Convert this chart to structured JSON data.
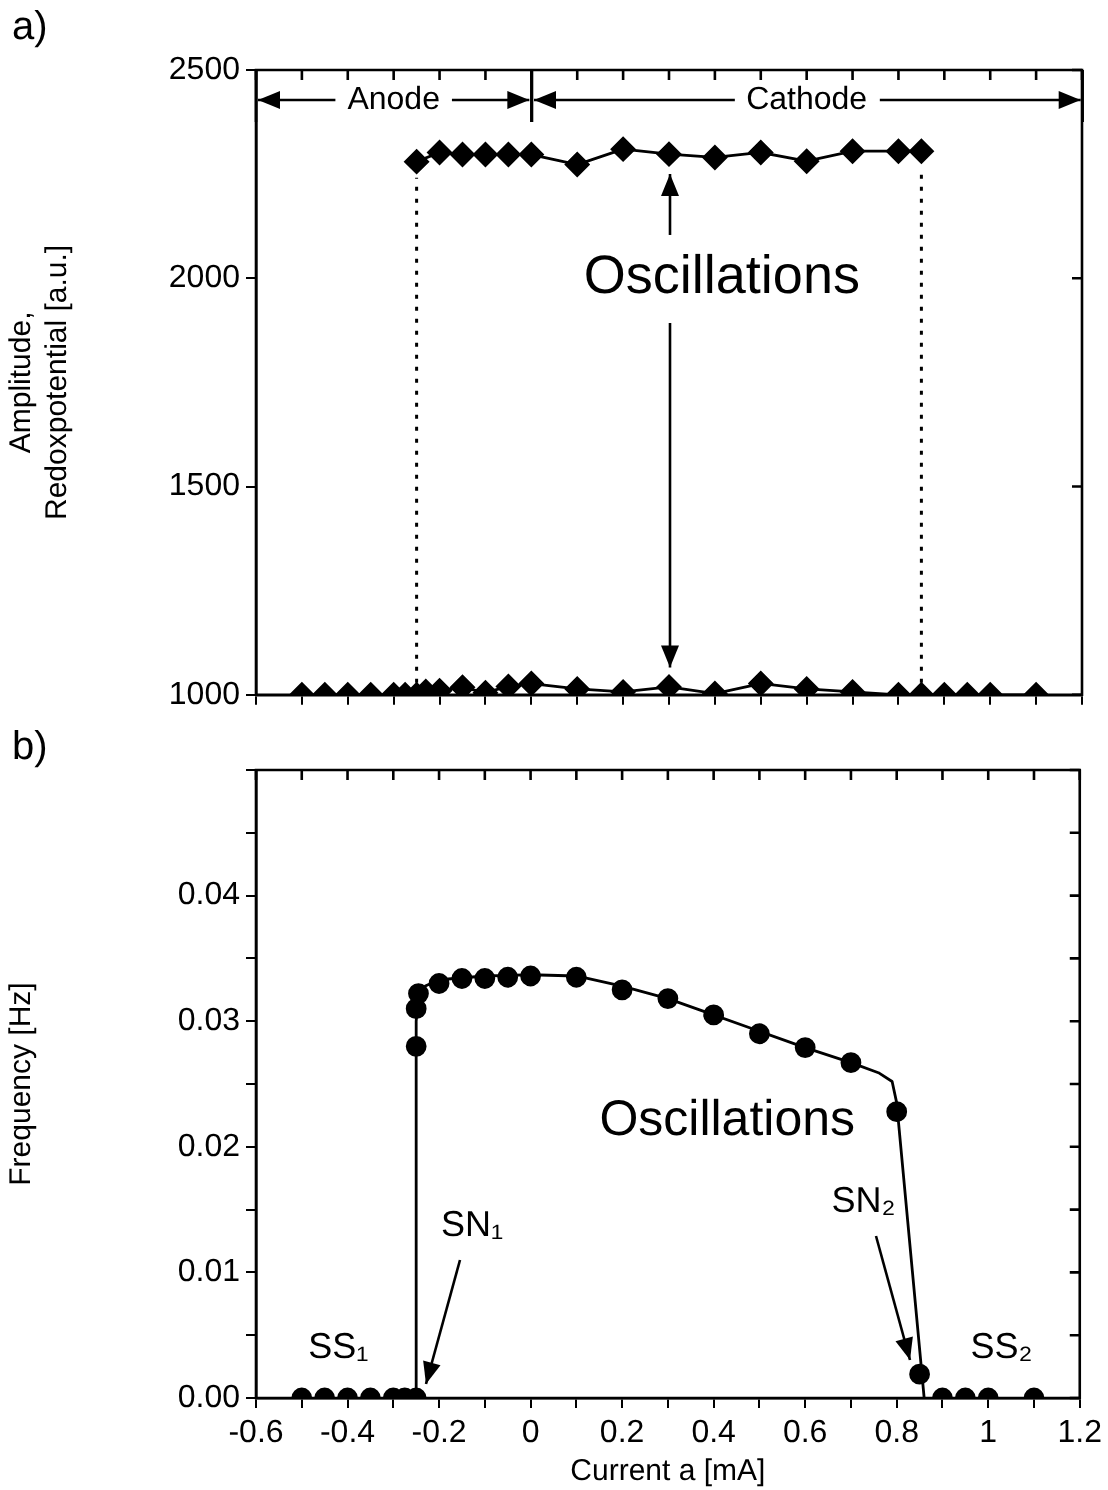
{
  "chart_data": [
    {
      "type": "line",
      "title": "a)",
      "ylabel": "Amplitude, Redoxpotential [a.u.]",
      "xlim": [
        -0.6,
        1.2
      ],
      "xticks": [
        -0.6,
        {
          "value": -0.5,
          "label": null
        },
        -0.4,
        {
          "value": -0.3,
          "label": null
        },
        -0.2,
        {
          "value": -0.1,
          "label": null
        },
        0,
        {
          "value": 0.1,
          "label": null
        },
        0.2,
        {
          "value": 0.3,
          "label": null
        },
        0.4,
        {
          "value": 0.5,
          "label": null
        },
        0.6,
        {
          "value": 0.7,
          "label": null
        },
        0.8,
        {
          "value": 0.9,
          "label": null
        },
        1,
        {
          "value": 1.1,
          "label": null
        },
        1.2
      ],
      "ylim": [
        1000,
        2500
      ],
      "yticks": [
        1000,
        1500,
        2000,
        2500
      ],
      "tick_labels": "y",
      "marker": "diamond",
      "grid": false,
      "legend": false,
      "series": [
        {
          "color": "#000000",
          "x": [
            -0.25,
            -0.2,
            -0.15,
            -0.1,
            -0.05,
            0,
            0.1,
            0.2,
            0.3,
            0.4,
            0.5,
            0.6,
            0.7,
            0.8,
            0.85
          ],
          "values": [
            2280,
            2302,
            2297,
            2297,
            2297,
            2297,
            2273,
            2310,
            2298,
            2290,
            2302,
            2281,
            2305,
            2305,
            2305
          ]
        },
        {
          "color": "#000000",
          "x": [
            -0.5,
            -0.45,
            -0.4,
            -0.35,
            -0.3,
            -0.275,
            -0.25,
            -0.23,
            -0.2,
            -0.15,
            -0.1,
            -0.05,
            0,
            0.1,
            0.2,
            0.3,
            0.4,
            0.5,
            0.6,
            0.7,
            0.8,
            0.85,
            0.9,
            0.95,
            1,
            1.1
          ],
          "values": [
            1000,
            1000,
            1000,
            1000,
            1000,
            1000,
            1000,
            1008,
            1010,
            1018,
            1005,
            1020,
            1027,
            1014,
            1007,
            1019,
            1003,
            1027,
            1014,
            1007,
            1000,
            1000,
            1000,
            1000,
            1000,
            1000
          ]
        }
      ],
      "ref_lines": [
        {
          "axis": "x",
          "value": -0.25,
          "line_style": "dotted"
        },
        {
          "axis": "x",
          "value": 0.85,
          "line_style": "dotted"
        }
      ],
      "annotations": [
        "Anode",
        "Cathode",
        "Oscillations"
      ]
    },
    {
      "type": "scatter",
      "title": "b)",
      "xlabel": "Current a [mA]",
      "ylabel": "Frequency [Hz]",
      "xlim": [
        -0.6,
        1.2
      ],
      "xticks": [
        -0.6,
        {
          "value": -0.5,
          "label": null
        },
        -0.4,
        {
          "value": -0.3,
          "label": null
        },
        -0.2,
        {
          "value": -0.1,
          "label": null
        },
        0,
        {
          "value": 0.1,
          "label": null
        },
        0.2,
        {
          "value": 0.3,
          "label": null
        },
        0.4,
        {
          "value": 0.5,
          "label": null
        },
        0.6,
        {
          "value": 0.7,
          "label": null
        },
        0.8,
        {
          "value": 0.9,
          "label": null
        },
        1,
        {
          "value": 1.1,
          "label": null
        },
        1.2
      ],
      "ylim": [
        0,
        0.05
      ],
      "yticks": [
        {
          "value": 0,
          "label": "0.00"
        },
        {
          "value": 0.005,
          "label": null
        },
        0.01,
        {
          "value": 0.015,
          "label": null
        },
        0.02,
        {
          "value": 0.025,
          "label": null
        },
        0.03,
        {
          "value": 0.035,
          "label": null
        },
        0.04,
        {
          "value": 0.045,
          "label": null
        },
        {
          "value": 0.05,
          "label": null
        }
      ],
      "marker": "circle",
      "grid": false,
      "legend": false,
      "series": [
        {
          "color": "#000000",
          "x": [
            -0.5,
            -0.45,
            -0.4,
            -0.35,
            -0.3,
            -0.275,
            -0.25,
            -0.25,
            -0.25,
            -0.245,
            -0.2,
            -0.15,
            -0.1,
            -0.05,
            0,
            0.1,
            0.2,
            0.3,
            0.4,
            0.5,
            0.6,
            0.7,
            0.8,
            0.85,
            0.9,
            0.95,
            1,
            1.1
          ],
          "values": [
            0,
            0,
            0,
            0,
            0,
            0,
            0,
            0.028,
            0.031,
            0.0322,
            0.033,
            0.0334,
            0.0334,
            0.0335,
            0.0336,
            0.0335,
            0.0325,
            0.0318,
            0.0305,
            0.029,
            0.0279,
            0.0267,
            0.0228,
            0.0019,
            0,
            0,
            0,
            0
          ]
        },
        {
          "type": "line",
          "marker": "none",
          "color": "#000000",
          "x": [
            -0.25,
            -0.25,
            -0.245,
            -0.23,
            -0.2,
            -0.1,
            0,
            0.1,
            0.2,
            0.3,
            0.4,
            0.5,
            0.6,
            0.7,
            0.76,
            0.79,
            0.8,
            0.86
          ],
          "values": [
            0,
            0.03,
            0.032,
            0.0328,
            0.0333,
            0.0336,
            0.0337,
            0.0336,
            0.0328,
            0.0318,
            0.0305,
            0.0292,
            0.0279,
            0.0267,
            0.0259,
            0.0252,
            0.0235,
            0
          ]
        }
      ],
      "annotations": [
        "Oscillations",
        {
          "text": "SN₁",
          "x": -0.25,
          "y": 0
        },
        {
          "text": "SN₂",
          "x": 0.85,
          "y": 0.0019
        },
        "SS₁",
        "SS₂"
      ]
    }
  ]
}
